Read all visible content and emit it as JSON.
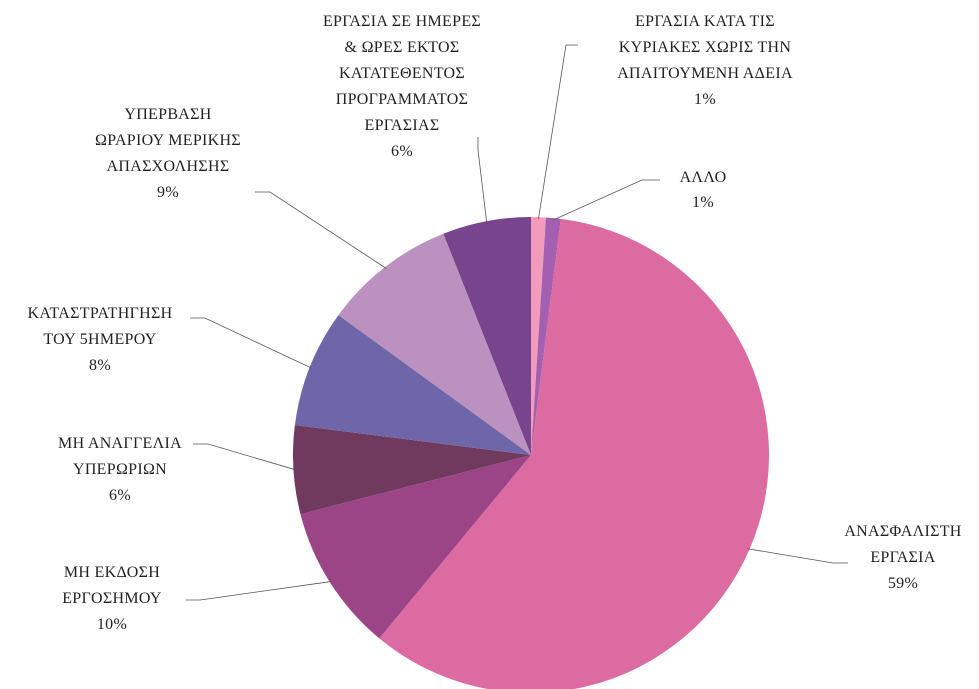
{
  "chart_data": {
    "type": "pie",
    "categories": [
      "ΕΡΓΑΣΙΑ ΚΑΤΑ ΤΙΣ\nΚΥΡΙΑΚΕΣ ΧΩΡΙΣ ΤΗΝ\nΑΠΑΙΤΟΥΜΕΝΗ ΑΔΕΙΑ",
      "ΑΛΛΟ",
      "ΑΝΑΣΦΑΛΙΣΤΗ\nΕΡΓΑΣΙΑ",
      "ΜΗ ΕΚΔΟΣΗ\nΕΡΓΟΣΗΜΟΥ",
      "ΜΗ ΑΝΑΓΓΕΛΙΑ\nΥΠΕΡΩΡΙΩΝ",
      "ΚΑΤΑΣΤΡΑΤΗΓΗΣΗ\nΤΟΥ 5ΗΜΕΡΟΥ",
      "ΥΠΕΡΒΑΣΗ\nΩΡΑΡΙΟΥ ΜΕΡΙΚΗΣ\nΑΠΑΣΧΟΛΗΣΗΣ",
      "ΕΡΓΑΣΙΑ ΣΕ ΗΜΕΡΕΣ\n& ΩΡΕΣ ΕΚΤΟΣ\nΚΑΤΑΤΕΘΕΝΤΟΣ\nΠΡΟΓΡΑΜΜΑΤΟΣ\nΕΡΓΑΣΙΑΣ"
    ],
    "values": [
      1,
      1,
      59,
      10,
      6,
      8,
      9,
      6
    ],
    "value_labels": [
      "1%",
      "1%",
      "59%",
      "10%",
      "6%",
      "8%",
      "9%",
      "6%"
    ],
    "colors": [
      "#f29bbd",
      "#a55fb0",
      "#dc6ba1",
      "#9b4587",
      "#6f3a5d",
      "#6f65a9",
      "#bb91c0",
      "#78448d"
    ]
  }
}
